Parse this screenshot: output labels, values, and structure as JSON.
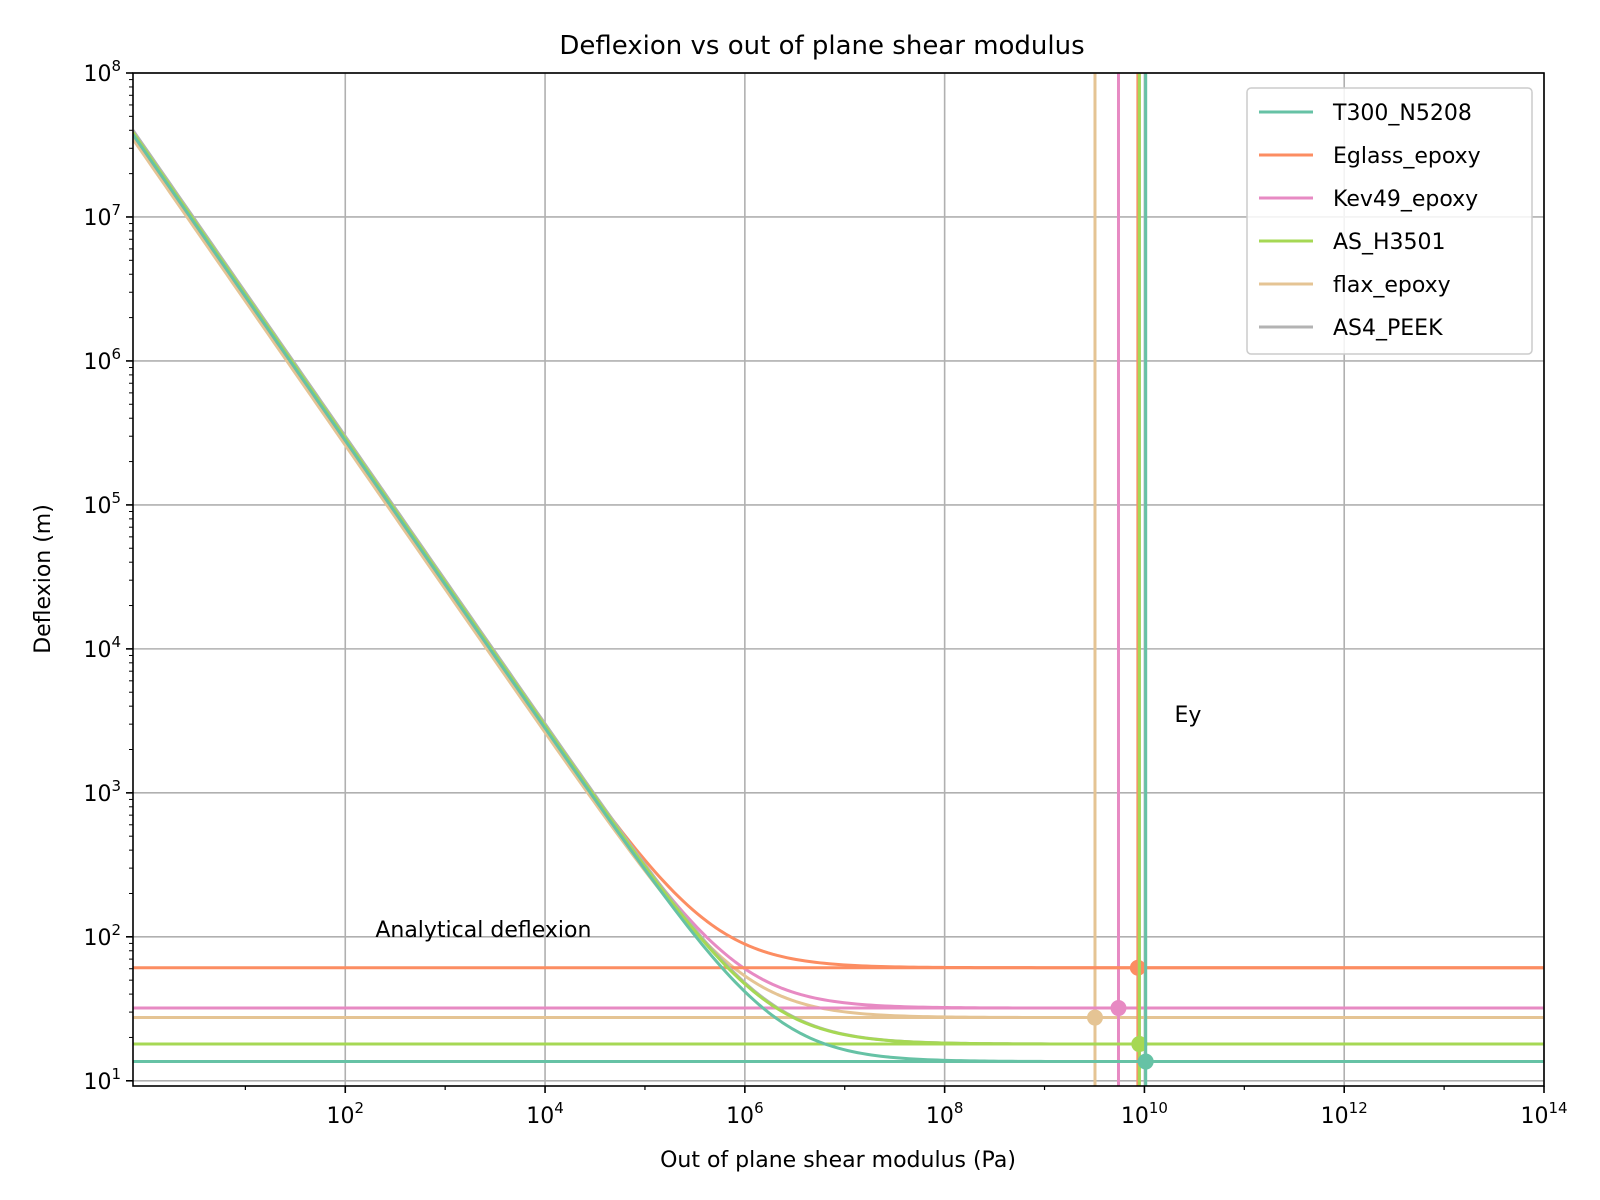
{
  "chart_data": {
    "type": "line",
    "title": "Deflexion vs out of plane shear modulus",
    "xlabel": "Out of plane shear modulus (Pa)",
    "ylabel": "Deflexion (m)",
    "xscale": "log",
    "yscale": "log",
    "xlim": [
      0.75,
      100000000000000.0
    ],
    "ylim": [
      9.2,
      100000000.0
    ],
    "grid": true,
    "legend_position": "top-right",
    "x_ticks": [
      {
        "value": 100,
        "base": "10",
        "exp": "2"
      },
      {
        "value": 10000,
        "base": "10",
        "exp": "4"
      },
      {
        "value": 1000000,
        "base": "10",
        "exp": "6"
      },
      {
        "value": 100000000,
        "base": "10",
        "exp": "8"
      },
      {
        "value": 10000000000,
        "base": "10",
        "exp": "10"
      },
      {
        "value": 1000000000000,
        "base": "10",
        "exp": "12"
      },
      {
        "value": 100000000000000,
        "base": "10",
        "exp": "14"
      }
    ],
    "y_ticks": [
      {
        "value": 10,
        "base": "10",
        "exp": "1"
      },
      {
        "value": 100,
        "base": "10",
        "exp": "2"
      },
      {
        "value": 1000,
        "base": "10",
        "exp": "3"
      },
      {
        "value": 10000,
        "base": "10",
        "exp": "4"
      },
      {
        "value": 100000,
        "base": "10",
        "exp": "5"
      },
      {
        "value": 1000000,
        "base": "10",
        "exp": "6"
      },
      {
        "value": 10000000,
        "base": "10",
        "exp": "7"
      },
      {
        "value": 100000000,
        "base": "10",
        "exp": "8"
      }
    ],
    "annotations": [
      {
        "text": "Analytical deflexion",
        "x": 200,
        "y": 100
      },
      {
        "text": "Ey",
        "x": 20000000000,
        "y": 3100
      }
    ],
    "series": [
      {
        "name": "T300_N5208",
        "color": "#66c2a5",
        "analytical": 13.6,
        "Ey": 10300000000,
        "stiff": 13.6,
        "soft_coeff": 28000000,
        "marker": [
          10300000000,
          13.6
        ]
      },
      {
        "name": "Eglass_epoxy",
        "color": "#fc8d62",
        "analytical": 61,
        "Ey": 8600000000,
        "stiff": 61,
        "soft_coeff": 28000000,
        "marker": [
          8600000000,
          61
        ]
      },
      {
        "name": "Kev49_epoxy",
        "color": "#e78ac3",
        "analytical": 32,
        "Ey": 5500000000,
        "stiff": 32,
        "soft_coeff": 28000000,
        "marker": [
          5500000000,
          32
        ]
      },
      {
        "name": "AS_H3501",
        "color": "#a6d854",
        "analytical": 18,
        "Ey": 8900000000,
        "stiff": 18,
        "soft_coeff": 29000000,
        "marker": [
          8900000000,
          18
        ]
      },
      {
        "name": "flax_epoxy",
        "color": "#e5c494",
        "analytical": 27.5,
        "Ey": 3200000000,
        "stiff": 27.5,
        "soft_coeff": 26000000,
        "marker": [
          3200000000,
          27.5
        ]
      },
      {
        "name": "AS4_PEEK",
        "color": "#b3b3b3",
        "analytical": 18,
        "Ey": 8900000000,
        "stiff": 18,
        "soft_coeff": 30000000,
        "marker": [
          8900000000,
          18
        ]
      }
    ]
  }
}
